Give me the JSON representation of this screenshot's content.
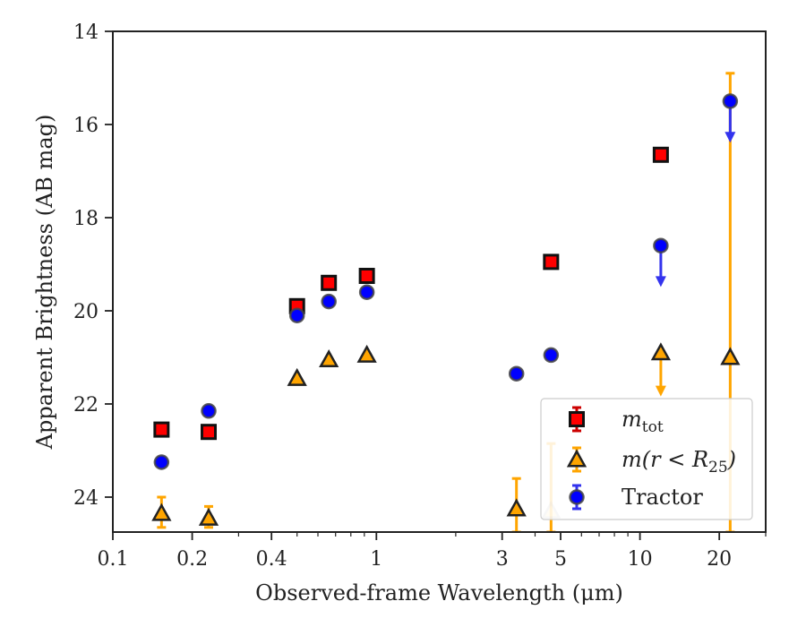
{
  "chart_data": {
    "type": "scatter",
    "xlabel": "Observed-frame Wavelength (μm)",
    "ylabel": "Apparent Brightness (AB mag)",
    "x_scale": "log",
    "xlim": [
      0.1,
      30
    ],
    "ylim": [
      24.75,
      14
    ],
    "y_inverted": true,
    "grid": false,
    "legend_position": "lower-right",
    "x_ticks": [
      {
        "value": 0.1,
        "label": "0.1"
      },
      {
        "value": 0.2,
        "label": "0.2"
      },
      {
        "value": 0.4,
        "label": "0.4"
      },
      {
        "value": 1,
        "label": "1"
      },
      {
        "value": 3,
        "label": "3"
      },
      {
        "value": 5,
        "label": "5"
      },
      {
        "value": 10,
        "label": "10"
      },
      {
        "value": 20,
        "label": "20"
      }
    ],
    "y_ticks": [
      {
        "value": 14,
        "label": "14"
      },
      {
        "value": 16,
        "label": "16"
      },
      {
        "value": 18,
        "label": "18"
      },
      {
        "value": 20,
        "label": "20"
      },
      {
        "value": 22,
        "label": "22"
      },
      {
        "value": 24,
        "label": "24"
      }
    ],
    "series": [
      {
        "name": "m_tot",
        "legend_label": {
          "base": "m",
          "sub": "tot"
        },
        "marker": "square",
        "color": "#ff0000",
        "edge_color": "#111111",
        "errorbar_color": "#cc0000",
        "points": [
          {
            "x": 0.153,
            "y": 22.55
          },
          {
            "x": 0.231,
            "y": 22.6
          },
          {
            "x": 0.5,
            "y": 19.9
          },
          {
            "x": 0.66,
            "y": 19.4
          },
          {
            "x": 0.92,
            "y": 19.25
          },
          {
            "x": 4.6,
            "y": 18.95
          },
          {
            "x": 12.0,
            "y": 16.65
          }
        ]
      },
      {
        "name": "m(r < R25)",
        "legend_label": {
          "base": "m(r < R",
          "sub": "25",
          "end": ")"
        },
        "marker": "triangle",
        "color": "#ffa500",
        "edge_color": "#222222",
        "errorbar_color": "#ffa500",
        "points": [
          {
            "x": 0.153,
            "y": 24.35,
            "yerr": [
              24.0,
              24.65
            ]
          },
          {
            "x": 0.231,
            "y": 24.45,
            "yerr": [
              24.2,
              24.65
            ]
          },
          {
            "x": 0.5,
            "y": 21.45
          },
          {
            "x": 0.66,
            "y": 21.05
          },
          {
            "x": 0.92,
            "y": 20.95
          },
          {
            "x": 3.4,
            "y": 24.25,
            "yerr": [
              23.6,
              24.75
            ]
          },
          {
            "x": 4.6,
            "y": 24.3,
            "yerr": [
              22.85,
              24.75
            ],
            "faded": true
          },
          {
            "x": 12.0,
            "y": 20.9,
            "upper_limit": true,
            "arrow_to": 21.8
          },
          {
            "x": 22.0,
            "y": 21.0,
            "yerr": [
              14.9,
              24.75
            ]
          }
        ]
      },
      {
        "name": "Tractor",
        "legend_label": {
          "base": "Tractor"
        },
        "marker": "circle",
        "color": "#0000ff",
        "edge_color": "#444444",
        "errorbar_color": "#3333ee",
        "points": [
          {
            "x": 0.153,
            "y": 23.25
          },
          {
            "x": 0.231,
            "y": 22.15
          },
          {
            "x": 0.5,
            "y": 20.1
          },
          {
            "x": 0.66,
            "y": 19.8
          },
          {
            "x": 0.92,
            "y": 19.6
          },
          {
            "x": 3.4,
            "y": 21.35
          },
          {
            "x": 4.6,
            "y": 20.95
          },
          {
            "x": 12.0,
            "y": 18.6,
            "upper_limit": true,
            "arrow_to": 19.45
          },
          {
            "x": 22.0,
            "y": 15.5,
            "upper_limit": true,
            "arrow_to": 16.35
          }
        ]
      }
    ]
  }
}
